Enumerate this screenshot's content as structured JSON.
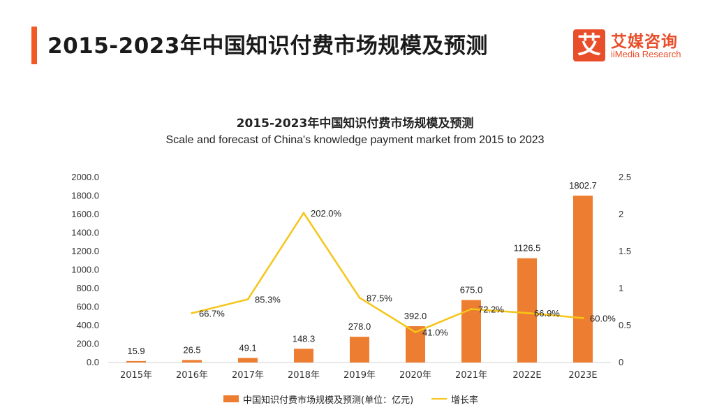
{
  "header": {
    "title": "2015-2023年中国知识付费市场规模及预测",
    "accent_color": "#f15a22"
  },
  "logo": {
    "mark": "艾",
    "name_cn": "艾媒咨询",
    "name_en": "iiMedia Research",
    "color": "#e84e2a"
  },
  "chart_data": {
    "type": "bar",
    "title": "2015-2023年中国知识付费市场规模及预测",
    "subtitle": "Scale and forecast of China's knowledge payment market from 2015 to 2023",
    "categories": [
      "2015年",
      "2016年",
      "2017年",
      "2018年",
      "2019年",
      "2020年",
      "2021年",
      "2022E",
      "2023E"
    ],
    "series": [
      {
        "name": "中国知识付费市场规模及预测(单位：亿元)",
        "type": "bar",
        "axis": "left",
        "color": "#ed7d31",
        "values": [
          15.9,
          26.5,
          49.1,
          148.3,
          278.0,
          392.0,
          675.0,
          1126.5,
          1802.7
        ],
        "labels": [
          "15.9",
          "26.5",
          "49.1",
          "148.3",
          "278.0",
          "392.0",
          "675.0",
          "1126.5",
          "1802.7"
        ]
      },
      {
        "name": "增长率",
        "type": "line",
        "axis": "right",
        "color": "#f5c518",
        "values": [
          null,
          0.667,
          0.853,
          2.02,
          0.875,
          0.41,
          0.722,
          0.669,
          0.6
        ],
        "labels": [
          "",
          "66.7%",
          "85.3%",
          "202.0%",
          "87.5%",
          "41.0%",
          "72.2%",
          "66.9%",
          "60.0%"
        ]
      }
    ],
    "y_left": {
      "range": [
        0,
        2000
      ],
      "ticks": [
        "0.0",
        "200.0",
        "400.0",
        "600.0",
        "800.0",
        "1000.0",
        "1200.0",
        "1400.0",
        "1600.0",
        "1800.0",
        "2000.0"
      ]
    },
    "y_right": {
      "range": [
        0,
        2.5
      ],
      "ticks": [
        "0",
        "0.5",
        "1",
        "1.5",
        "2",
        "2.5"
      ]
    },
    "grid": false,
    "legend_position": "bottom"
  }
}
